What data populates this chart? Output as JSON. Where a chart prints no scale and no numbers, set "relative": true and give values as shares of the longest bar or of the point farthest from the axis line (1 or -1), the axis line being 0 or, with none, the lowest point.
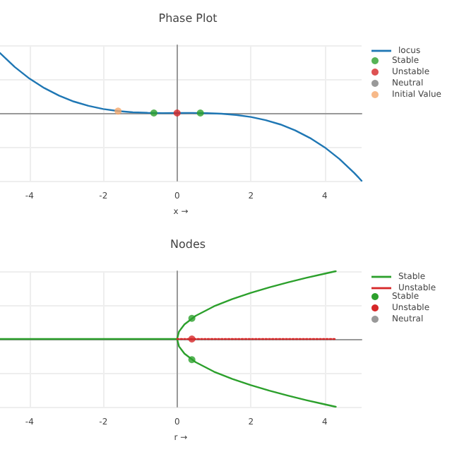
{
  "chart_data": [
    {
      "type": "line",
      "title": "Phase Plot",
      "xlabel": "x →",
      "relative": true,
      "xlim": [
        -4.8,
        5
      ],
      "xticks": [
        -4,
        -2,
        0,
        2,
        4
      ],
      "tick_labels": "x",
      "grid": true,
      "legend": "top right",
      "series": [
        {
          "name": "locus",
          "color": "#1f77b4",
          "marker": "none",
          "line_style": "solid",
          "x": [
            -4.8,
            -4.4,
            -4,
            -3.6,
            -3.2,
            -2.8,
            -2.4,
            -2,
            -1.6,
            -1.2,
            -0.8,
            -0.4,
            0,
            0.4,
            0.8,
            1.2,
            1.6,
            2,
            2.4,
            2.8,
            3.2,
            3.6,
            4,
            4.4,
            4.8,
            5
          ],
          "values": [
            0.884,
            0.678,
            0.507,
            0.368,
            0.256,
            0.169,
            0.105,
            0.059,
            0.028,
            0.01,
            0.002,
            -0.001,
            0,
            0.001,
            -0.002,
            -0.01,
            -0.028,
            -0.059,
            -0.105,
            -0.169,
            -0.256,
            -0.368,
            -0.507,
            -0.678,
            -0.884,
            -1
          ]
        },
        {
          "name": "Stable",
          "type": "scatter",
          "color": "#2ca02c",
          "marker": "circle",
          "x": [
            -0.63,
            0.63
          ],
          "values": [
            0,
            0
          ]
        },
        {
          "name": "Unstable",
          "type": "scatter",
          "color": "#d62728",
          "marker": "circle",
          "x": [
            0
          ],
          "values": [
            0
          ]
        },
        {
          "name": "Neutral",
          "type": "scatter",
          "color": "#7f7f7f",
          "marker": "circle"
        },
        {
          "name": "Initial Value",
          "type": "scatter",
          "color": "#f5a76c",
          "marker": "circle",
          "x": [
            -1.6
          ],
          "values": [
            0.028
          ]
        }
      ]
    },
    {
      "type": "line",
      "title": "Nodes",
      "xlabel": "r →",
      "relative": true,
      "xlim": [
        -4.8,
        5
      ],
      "xticks": [
        -4,
        -2,
        0,
        2,
        4
      ],
      "tick_labels": "x",
      "grid": true,
      "legend": "top right",
      "series": [
        {
          "name": "Stable",
          "color": "#2ca02c",
          "marker": "none",
          "line_style": "solid",
          "x": [
            -4.8,
            0,
            0.05,
            0.2,
            0.5,
            1,
            1.5,
            2,
            2.5,
            3,
            3.5,
            4,
            4.3
          ],
          "values": [
            0,
            0,
            0.108,
            0.216,
            0.341,
            0.482,
            0.591,
            0.682,
            0.762,
            0.835,
            0.902,
            0.964,
            1
          ]
        },
        {
          "color": "#2ca02c",
          "marker": "none",
          "line_style": "solid",
          "x": [
            0,
            0.05,
            0.2,
            0.5,
            1,
            1.5,
            2,
            2.5,
            3,
            3.5,
            4,
            4.3
          ],
          "values": [
            0,
            -0.108,
            -0.216,
            -0.341,
            -0.482,
            -0.591,
            -0.682,
            -0.762,
            -0.835,
            -0.902,
            -0.964,
            -1
          ]
        },
        {
          "name": "Unstable",
          "color": "#d62728",
          "marker": "none",
          "line_style": "dotted",
          "x": [
            0,
            4.3
          ],
          "values": [
            0,
            0
          ]
        },
        {
          "name": "Stable",
          "type": "scatter",
          "color": "#2ca02c",
          "marker": "circle",
          "x": [
            0.4,
            0.4
          ],
          "values": [
            0.305,
            -0.305
          ]
        },
        {
          "name": "Unstable",
          "type": "scatter",
          "color": "#d62728",
          "marker": "circle",
          "x": [
            0.4
          ],
          "values": [
            0
          ]
        },
        {
          "name": "Neutral",
          "type": "scatter",
          "color": "#7f7f7f",
          "marker": "circle"
        }
      ]
    }
  ]
}
